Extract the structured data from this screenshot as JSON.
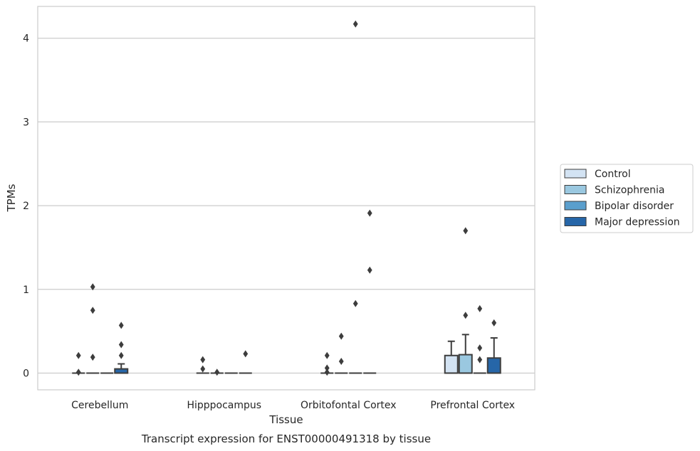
{
  "chart_data": {
    "type": "boxplot",
    "caption": "Transcript expression for ENST00000491318 by tissue",
    "xlabel": "Tissue",
    "ylabel": "TPMs",
    "ylim": [
      -0.2,
      4.38
    ],
    "yticks": [
      0,
      1,
      2,
      3,
      4
    ],
    "grid": "horizontal",
    "legend_position": "right",
    "categories": [
      "Cerebellum",
      "Hipppocampus",
      "Orbitofontal Cortex",
      "Prefrontal Cortex"
    ],
    "series": [
      {
        "name": "Control",
        "color": "#d3e3f3",
        "boxes": [
          {
            "q1": 0,
            "median": 0,
            "q3": 0,
            "whisker_low": 0,
            "whisker_high": 0,
            "outliers": [
              0.21,
              0.01
            ]
          },
          {
            "q1": 0,
            "median": 0,
            "q3": 0,
            "whisker_low": 0,
            "whisker_high": 0,
            "outliers": [
              0.16,
              0.05
            ]
          },
          {
            "q1": 0,
            "median": 0,
            "q3": 0,
            "whisker_low": 0,
            "whisker_high": 0,
            "outliers": [
              0.21,
              0.06,
              0.01
            ]
          },
          {
            "q1": 0,
            "median": 0,
            "q3": 0.21,
            "whisker_low": 0,
            "whisker_high": 0.38,
            "outliers": []
          }
        ]
      },
      {
        "name": "Schizophrenia",
        "color": "#9ac8e0",
        "boxes": [
          {
            "q1": 0,
            "median": 0,
            "q3": 0,
            "whisker_low": 0,
            "whisker_high": 0,
            "outliers": [
              1.03,
              0.75,
              0.19
            ]
          },
          {
            "q1": 0,
            "median": 0,
            "q3": 0,
            "whisker_low": 0,
            "whisker_high": 0,
            "outliers": [
              0.01
            ]
          },
          {
            "q1": 0,
            "median": 0,
            "q3": 0,
            "whisker_low": 0,
            "whisker_high": 0,
            "outliers": [
              0.44,
              0.14
            ]
          },
          {
            "q1": 0,
            "median": 0,
            "q3": 0.22,
            "whisker_low": 0,
            "whisker_high": 0.46,
            "outliers": [
              1.7,
              0.69
            ]
          }
        ]
      },
      {
        "name": "Bipolar disorder",
        "color": "#5a9fcd",
        "boxes": [
          {
            "q1": 0,
            "median": 0,
            "q3": 0,
            "whisker_low": 0,
            "whisker_high": 0,
            "outliers": []
          },
          {
            "q1": 0,
            "median": 0,
            "q3": 0,
            "whisker_low": 0,
            "whisker_high": 0,
            "outliers": []
          },
          {
            "q1": 0,
            "median": 0,
            "q3": 0,
            "whisker_low": 0,
            "whisker_high": 0,
            "outliers": [
              4.17,
              0.83
            ]
          },
          {
            "q1": 0,
            "median": 0,
            "q3": 0,
            "whisker_low": 0,
            "whisker_high": 0,
            "outliers": [
              0.77,
              0.3,
              0.16
            ]
          }
        ]
      },
      {
        "name": "Major depression",
        "color": "#2666a8",
        "boxes": [
          {
            "q1": 0,
            "median": 0,
            "q3": 0.05,
            "whisker_low": 0,
            "whisker_high": 0.11,
            "outliers": [
              0.57,
              0.34,
              0.21
            ]
          },
          {
            "q1": 0,
            "median": 0,
            "q3": 0,
            "whisker_low": 0,
            "whisker_high": 0,
            "outliers": [
              0.23
            ]
          },
          {
            "q1": 0,
            "median": 0,
            "q3": 0,
            "whisker_low": 0,
            "whisker_high": 0,
            "outliers": [
              1.91,
              1.23
            ]
          },
          {
            "q1": 0,
            "median": 0,
            "q3": 0.18,
            "whisker_low": 0,
            "whisker_high": 0.42,
            "outliers": [
              0.6
            ]
          }
        ]
      }
    ]
  }
}
